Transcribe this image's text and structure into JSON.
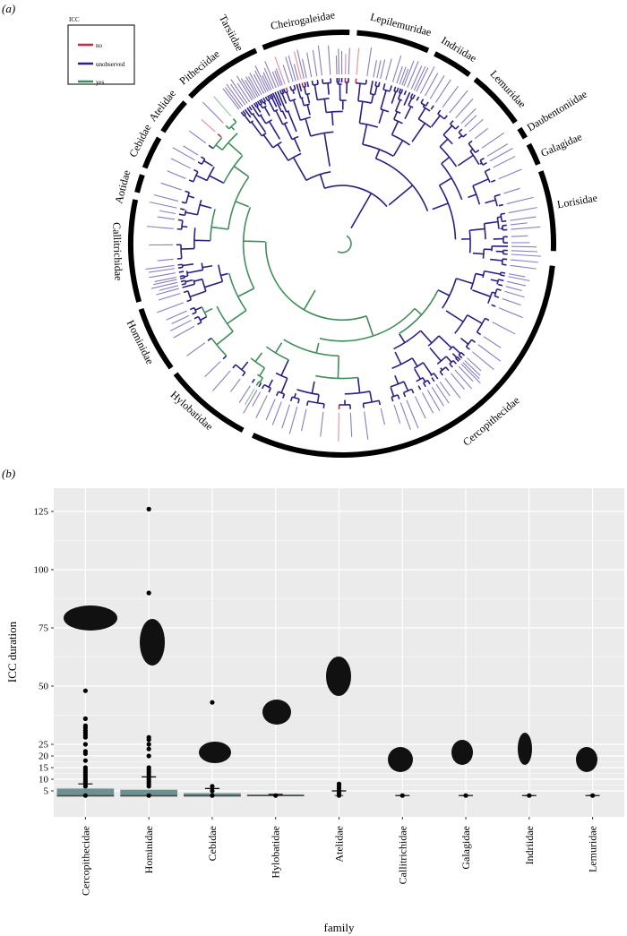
{
  "panel_a": {
    "label": "(a)",
    "legend": {
      "title": "ICC",
      "items": [
        {
          "label": "no",
          "color": "#d62839"
        },
        {
          "label": "unobserved",
          "color": "#2a1f86"
        },
        {
          "label": "yes",
          "color": "#3f8f5a"
        }
      ]
    },
    "families": [
      "Tarsiidae",
      "Cheirogaleidae",
      "Lepilemuridae",
      "Indriidae",
      "Lemuridae",
      "Daubentoniidae",
      "Galagidae",
      "Lorisidae",
      "Cercopithecidae",
      "Hylobatidae",
      "Hominidae",
      "Callitrichidae",
      "Aotidae",
      "Cebidae",
      "Atelidae",
      "Pitheciidae"
    ]
  },
  "panel_b": {
    "label": "(b)"
  },
  "chart_data": {
    "type": "boxplot",
    "xlabel": "family",
    "ylabel": "ICC duration",
    "ylim": [
      -3,
      137
    ],
    "yticks": [
      5,
      10,
      15,
      20,
      25,
      50,
      75,
      100,
      125
    ],
    "grid": true,
    "categories": [
      "Cercopithecidae",
      "Hominidae",
      "Cebidae",
      "Hylobatidae",
      "Atelidae",
      "Callitrichidae",
      "Galagidae",
      "Indriidae",
      "Lemuridae"
    ],
    "boxes": [
      {
        "q1": 2.5,
        "median": 3,
        "q3": 6,
        "mean": 8,
        "relative_width": 1.0,
        "outliers": [
          48,
          36,
          33,
          32,
          31,
          30,
          29,
          28,
          25,
          22,
          21,
          18,
          15,
          14,
          13,
          12,
          11,
          10,
          9,
          8,
          7
        ]
      },
      {
        "q1": 2.5,
        "median": 3,
        "q3": 5.5,
        "mean": 11,
        "relative_width": 1.0,
        "outliers": [
          126,
          90,
          68,
          28,
          27,
          25,
          23,
          20,
          15,
          14,
          13,
          12,
          11,
          10,
          9,
          8,
          7
        ]
      },
      {
        "q1": 2.5,
        "median": 3,
        "q3": 4,
        "mean": 6,
        "relative_width": 1.0,
        "outliers": [
          43,
          7,
          5
        ]
      },
      {
        "q1": 2.8,
        "median": 3,
        "q3": 3.5,
        "mean": 3.5,
        "relative_width": 1.0,
        "outliers": []
      },
      {
        "q1": 3,
        "median": 3,
        "q3": 3,
        "mean": 5,
        "relative_width": 0.15,
        "outliers": [
          8,
          7,
          6,
          5,
          4
        ]
      },
      {
        "q1": 3,
        "median": 3,
        "q3": 3,
        "mean": 3,
        "relative_width": 0.15,
        "outliers": []
      },
      {
        "q1": 3,
        "median": 3,
        "q3": 3,
        "mean": 3,
        "relative_width": 0.15,
        "outliers": []
      },
      {
        "q1": 3,
        "median": 3,
        "q3": 3,
        "mean": 3,
        "relative_width": 0.15,
        "outliers": []
      },
      {
        "q1": 3,
        "median": 3,
        "q3": 3,
        "mean": 3,
        "relative_width": 0.15,
        "outliers": []
      }
    ],
    "box_color": "#6e9090"
  }
}
